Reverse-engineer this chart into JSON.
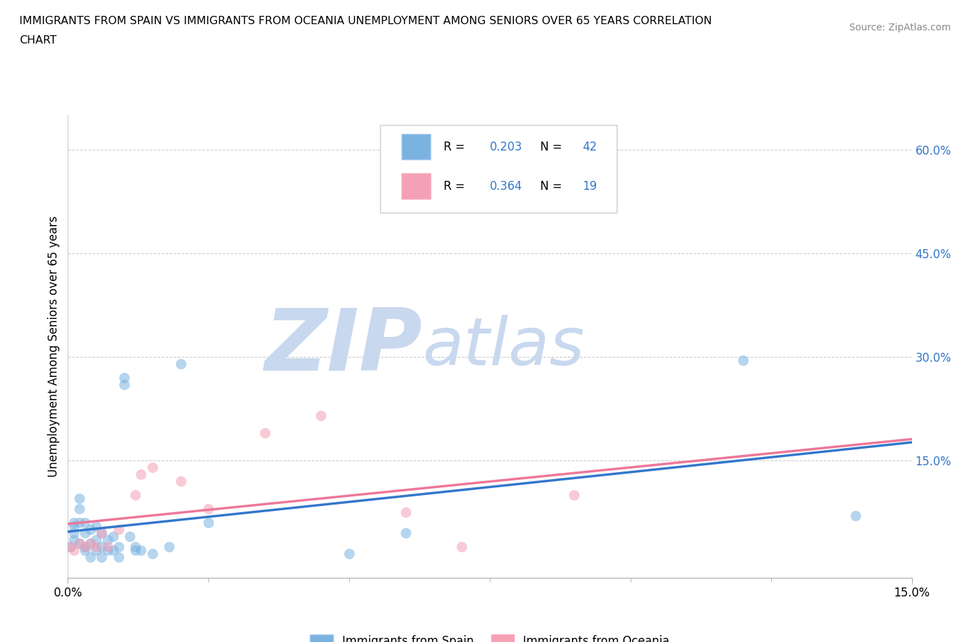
{
  "title_line1": "IMMIGRANTS FROM SPAIN VS IMMIGRANTS FROM OCEANIA UNEMPLOYMENT AMONG SENIORS OVER 65 YEARS CORRELATION",
  "title_line2": "CHART",
  "source_text": "Source: ZipAtlas.com",
  "ylabel": "Unemployment Among Seniors over 65 years",
  "xlim": [
    0.0,
    0.15
  ],
  "ylim": [
    -0.02,
    0.65
  ],
  "x_tick_labels": [
    "0.0%",
    "15.0%"
  ],
  "x_tick_pos": [
    0.0,
    0.15
  ],
  "y_tick_labels_right": [
    "60.0%",
    "45.0%",
    "30.0%",
    "15.0%"
  ],
  "y_tick_positions_right": [
    0.6,
    0.45,
    0.3,
    0.15
  ],
  "background_color": "#ffffff",
  "grid_color": "#cccccc",
  "watermark_zip": "ZIP",
  "watermark_atlas": "atlas",
  "watermark_color_zip": "#c8d8ee",
  "watermark_color_atlas": "#c8d8ee",
  "spain_color": "#7ab3e0",
  "oceania_color": "#f4a0b5",
  "spain_line_color": "#3377cc",
  "oceania_line_color": "#ee7799",
  "spain_R": 0.203,
  "spain_N": 42,
  "oceania_R": 0.364,
  "oceania_N": 19,
  "legend_label_spain": "Immigrants from Spain",
  "legend_label_oceania": "Immigrants from Oceania",
  "spain_x": [
    0.0005,
    0.001,
    0.001,
    0.001,
    0.001,
    0.002,
    0.002,
    0.002,
    0.002,
    0.003,
    0.003,
    0.003,
    0.003,
    0.004,
    0.004,
    0.004,
    0.005,
    0.005,
    0.005,
    0.006,
    0.006,
    0.006,
    0.007,
    0.007,
    0.008,
    0.008,
    0.009,
    0.009,
    0.01,
    0.01,
    0.011,
    0.012,
    0.012,
    0.013,
    0.015,
    0.018,
    0.02,
    0.025,
    0.05,
    0.06,
    0.12,
    0.14
  ],
  "spain_y": [
    0.025,
    0.045,
    0.055,
    0.06,
    0.035,
    0.06,
    0.08,
    0.095,
    0.03,
    0.06,
    0.045,
    0.025,
    0.02,
    0.05,
    0.03,
    0.01,
    0.055,
    0.035,
    0.02,
    0.045,
    0.025,
    0.01,
    0.035,
    0.02,
    0.04,
    0.02,
    0.025,
    0.01,
    0.26,
    0.27,
    0.04,
    0.025,
    0.02,
    0.02,
    0.015,
    0.025,
    0.29,
    0.06,
    0.015,
    0.045,
    0.295,
    0.07
  ],
  "oceania_x": [
    0.0005,
    0.001,
    0.002,
    0.003,
    0.004,
    0.005,
    0.006,
    0.007,
    0.009,
    0.012,
    0.013,
    0.015,
    0.02,
    0.025,
    0.035,
    0.045,
    0.06,
    0.07,
    0.09
  ],
  "oceania_y": [
    0.025,
    0.02,
    0.03,
    0.025,
    0.03,
    0.025,
    0.045,
    0.025,
    0.05,
    0.1,
    0.13,
    0.14,
    0.12,
    0.08,
    0.19,
    0.215,
    0.075,
    0.025,
    0.1
  ]
}
